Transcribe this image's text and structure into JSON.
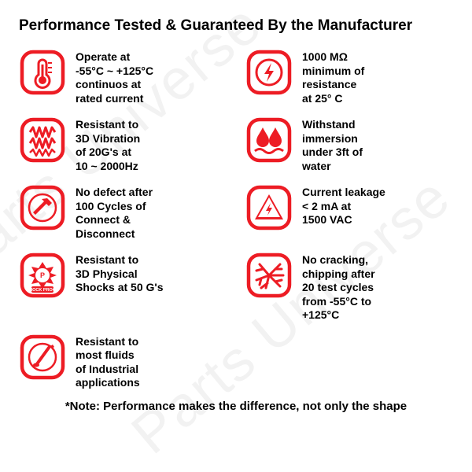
{
  "title": "Performance Tested & Guaranteed By the Manufacturer",
  "note": "*Note: Performance makes the difference, not only the shape",
  "watermark": "Parts Universe",
  "colors": {
    "icon_stroke": "#ed1c24",
    "icon_fill": "#ed1c24",
    "text": "#000000",
    "bg": "#ffffff",
    "wm": "#f2f2f2"
  },
  "items": [
    {
      "icon": "thermometer-icon",
      "text": "Operate at\n-55°C ~ +125°C\ncontinuos at\nrated current"
    },
    {
      "icon": "bolt-circle-icon",
      "text": "1000 MΩ\nminimum of\nresistance\nat 25° C"
    },
    {
      "icon": "vibration-icon",
      "text": "Resistant to\n3D Vibration\nof 20G's at\n10 ~ 2000Hz"
    },
    {
      "icon": "water-drops-icon",
      "text": "Withstand\nimmersion\nunder 3ft of\nwater"
    },
    {
      "icon": "hammer-icon",
      "text": "No defect after\n100 Cycles of\nConnect &\nDisconnect"
    },
    {
      "icon": "leakage-triangle-icon",
      "text": "Current leakage\n< 2 mA at\n1500 VAC"
    },
    {
      "icon": "shock-proof-icon",
      "text": "Resistant to\n3D Physical\nShocks at 50 G's"
    },
    {
      "icon": "crack-icon",
      "text": "No cracking,\nchipping after\n20 test cycles\nfrom -55°C to\n+125°C"
    },
    {
      "icon": "fluids-icon",
      "text": "Resistant to\nmost fluids\nof Industrial\napplications"
    }
  ]
}
